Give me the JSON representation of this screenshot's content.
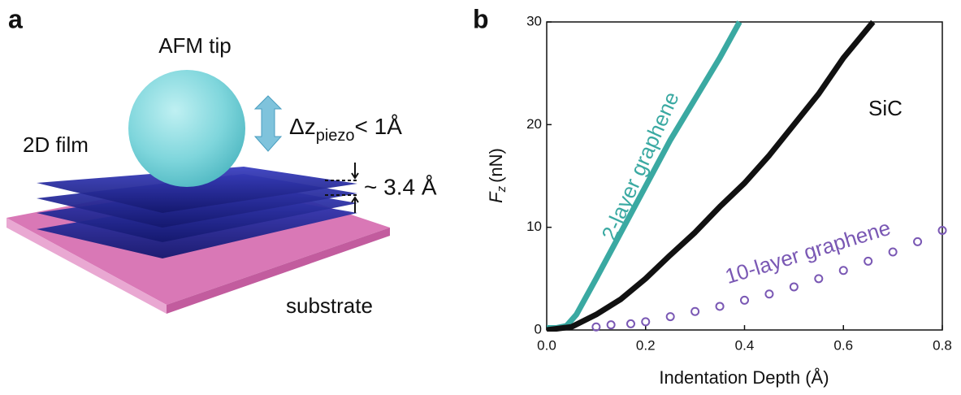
{
  "panel_a": {
    "label": "a",
    "tip_label": "AFM tip",
    "film_label": "2D film",
    "dz_symbol": "Δz",
    "dz_subscript": "piezo",
    "dz_value": "< 1Å",
    "spacing_label": "~ 3.4 Å",
    "substrate_label": "substrate"
  },
  "chart_data": {
    "type": "line",
    "panel_label": "b",
    "xlabel": "Indentation Depth (Å)",
    "ylabel_symbol": "F",
    "ylabel_subscript": "z",
    "ylabel_unit": "(nN)",
    "xlim": [
      0,
      0.8
    ],
    "ylim": [
      0,
      30
    ],
    "xticks": [
      {
        "value": 0,
        "label": "0.0"
      },
      0.2,
      0.4,
      0.6,
      0.8
    ],
    "yticks": [
      0,
      10,
      20,
      30
    ],
    "series": [
      {
        "name": "2-layer graphene",
        "color": "#3aa9a2",
        "style": "line",
        "x": [
          0,
          0.02,
          0.04,
          0.06,
          0.1,
          0.15,
          0.2,
          0.25,
          0.3,
          0.35,
          0.39
        ],
        "values": [
          0.2,
          0.2,
          0.4,
          1.5,
          5,
          9.5,
          14,
          18.5,
          22.5,
          26.5,
          30
        ]
      },
      {
        "name": "SiC",
        "color": "#111111",
        "style": "line",
        "x": [
          0,
          0.05,
          0.1,
          0.15,
          0.2,
          0.25,
          0.3,
          0.35,
          0.4,
          0.45,
          0.5,
          0.55,
          0.6,
          0.66
        ],
        "values": [
          0,
          0.3,
          1.5,
          3,
          5,
          7.3,
          9.5,
          12,
          14.3,
          17,
          20,
          23,
          26.5,
          30
        ]
      },
      {
        "name": "10-layer graphene",
        "color": "#7a58b4",
        "style": "markers",
        "x": [
          0.1,
          0.13,
          0.17,
          0.2,
          0.25,
          0.3,
          0.35,
          0.4,
          0.45,
          0.5,
          0.55,
          0.6,
          0.65,
          0.7,
          0.75,
          0.8
        ],
        "values": [
          0.3,
          0.5,
          0.6,
          0.8,
          1.3,
          1.8,
          2.3,
          2.9,
          3.5,
          4.2,
          5,
          5.8,
          6.7,
          7.6,
          8.6,
          9.7
        ]
      }
    ]
  }
}
